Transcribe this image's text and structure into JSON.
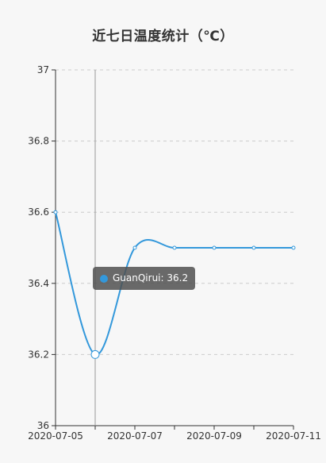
{
  "colors": {
    "series": "#3398DB",
    "axis": "#333333",
    "grid": "#cccccc",
    "pointer": "#999999",
    "background": "#f7f7f7"
  },
  "chart_data": {
    "type": "line",
    "title": "近七日温度统计（℃）",
    "xlabel": "",
    "ylabel": "",
    "smooth": true,
    "x": [
      "2020-07-05",
      "2020-07-06",
      "2020-07-07",
      "2020-07-08",
      "2020-07-09",
      "2020-07-10",
      "2020-07-11"
    ],
    "x_tick_labels": [
      "2020-07-05",
      "2020-07-07",
      "2020-07-09",
      "2020-07-11"
    ],
    "ylim": [
      36,
      37
    ],
    "y_ticks": [
      36,
      36.2,
      36.4,
      36.6,
      36.8,
      37
    ],
    "grid": true,
    "legend": "none",
    "series": [
      {
        "name": "GuanQirui",
        "values": [
          36.6,
          36.2,
          36.5,
          36.5,
          36.5,
          36.5,
          36.5
        ]
      }
    ],
    "tooltip": {
      "series": "GuanQirui",
      "x": "2020-07-06",
      "value": "36.2",
      "text": "GuanQirui: 36.2"
    }
  }
}
